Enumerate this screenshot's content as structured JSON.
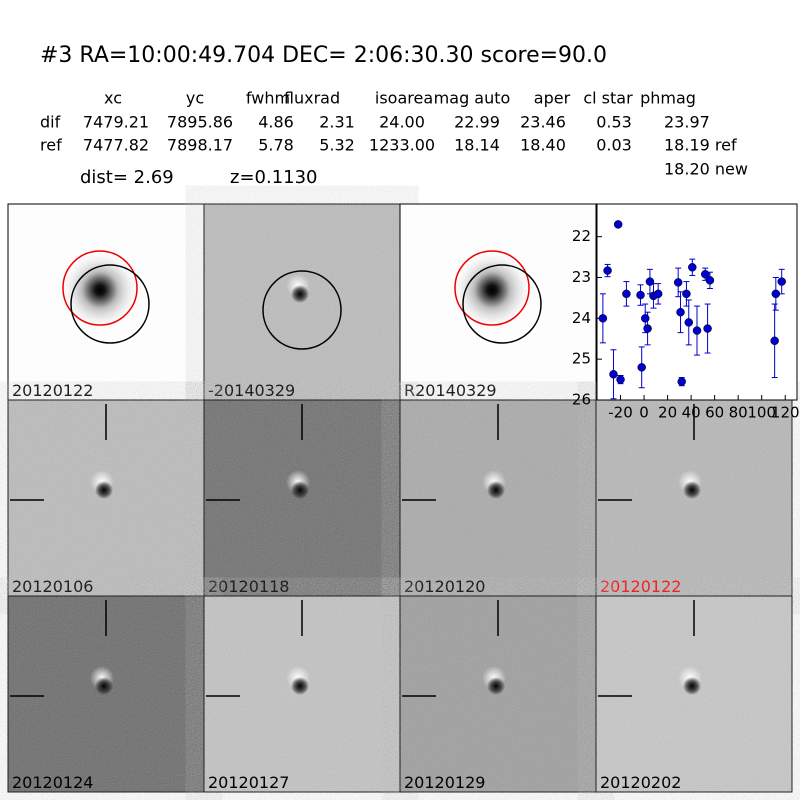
{
  "header": {
    "title": "#3   RA=10:00:49.704 DEC= 2:06:30.30      score=90.0",
    "dist": "dist=  2.69",
    "z": "z=0.1130"
  },
  "table": {
    "columns": [
      "xc",
      "yc",
      "fwhm",
      "fluxrad",
      "isoarea",
      "mag auto",
      "aper",
      "cl star",
      "phmag"
    ],
    "rows": [
      [
        "dif",
        "7479.21",
        "7895.86",
        "4.86",
        "2.31",
        "24.00",
        "22.99",
        "23.46",
        "0.53",
        "23.97"
      ],
      [
        "ref",
        "7477.82",
        "7898.17",
        "5.78",
        "5.32",
        "1233.00",
        "18.14",
        "18.40",
        "0.03",
        "18.19 ref"
      ]
    ],
    "note": "18.20 new"
  },
  "panels": [
    {
      "label": "20120122"
    },
    {
      "label": "-20140329"
    },
    {
      "label": "R20140329"
    },
    {
      "label": "20120106"
    },
    {
      "label": "20120118"
    },
    {
      "label": "20120120"
    },
    {
      "label": "20120122",
      "color": "#ff0000"
    },
    {
      "label": "20120124"
    },
    {
      "label": "20120127"
    },
    {
      "label": "20120129"
    },
    {
      "label": "20120202"
    }
  ],
  "chart_data": {
    "type": "scatter",
    "color": "#0000cc",
    "x": [
      -35,
      -31,
      -26,
      -22,
      -20,
      -15,
      -3,
      -2,
      1,
      3,
      5,
      8,
      12,
      29,
      31,
      32,
      36,
      38,
      41,
      45,
      52,
      54,
      56,
      111,
      112,
      117
    ],
    "values": [
      24.0,
      22.83,
      25.37,
      21.7,
      25.5,
      23.4,
      23.43,
      25.2,
      24.0,
      24.25,
      23.1,
      23.45,
      23.4,
      23.12,
      23.85,
      25.55,
      23.4,
      24.1,
      22.75,
      24.3,
      22.92,
      24.25,
      23.07,
      24.55,
      23.4,
      23.1
    ],
    "errors": [
      0.6,
      0.15,
      0.6,
      0.05,
      0.1,
      0.3,
      0.25,
      0.5,
      0.35,
      0.4,
      0.3,
      0.3,
      0.25,
      0.35,
      0.5,
      0.1,
      0.3,
      0.55,
      0.2,
      0.6,
      0.15,
      0.6,
      0.2,
      0.9,
      0.4,
      0.3
    ],
    "xlim": [
      -40,
      130
    ],
    "xticks": [
      -20,
      0,
      20,
      40,
      60,
      80,
      100,
      120
    ],
    "ylim": [
      26,
      21.2
    ],
    "yticks": [
      22,
      23,
      24,
      25,
      26
    ]
  }
}
